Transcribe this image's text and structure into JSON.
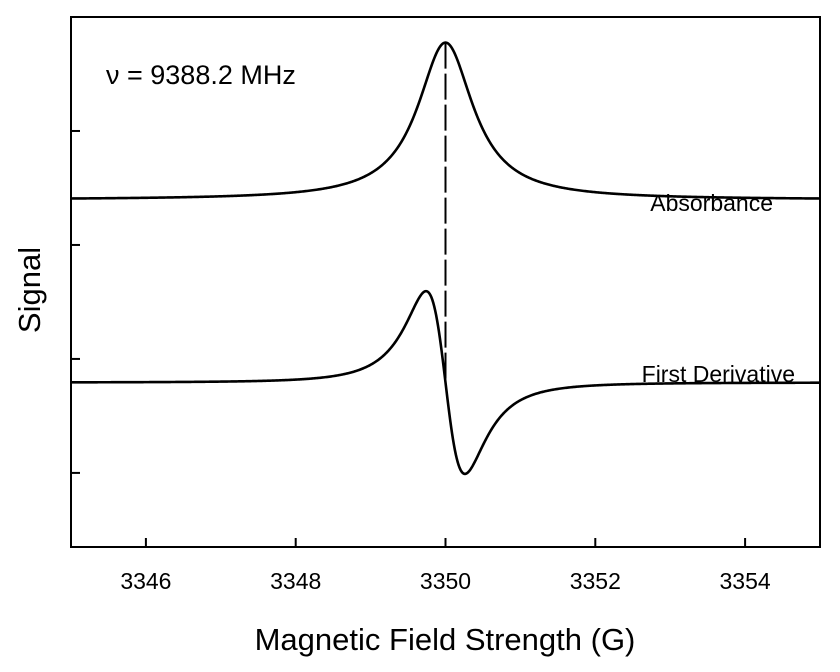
{
  "chart_data": {
    "type": "line",
    "title": "",
    "xlabel": "Magnetic Field Strength (G)",
    "ylabel": "Signal",
    "xlim": [
      3345,
      3355
    ],
    "ylim": [
      -1.9,
      1.0
    ],
    "xticks": [
      "3346",
      "3348",
      "3350",
      "3352",
      "3354"
    ],
    "yticks_count": 4,
    "annotation": "ν = 9388.2 MHz",
    "resonance_field": 3350,
    "linewidth_hwhm": 0.45,
    "series": [
      {
        "name": "Absorbance",
        "shape": "lorentzian",
        "baseline": 0.0,
        "amplitude": 0.86
      },
      {
        "name": "First Derivative",
        "shape": "lorentzian-derivative",
        "baseline": -1.0,
        "amplitude": 0.5
      }
    ],
    "dashed_marker_x": 3350,
    "grid": false,
    "legend": "inline labels"
  }
}
